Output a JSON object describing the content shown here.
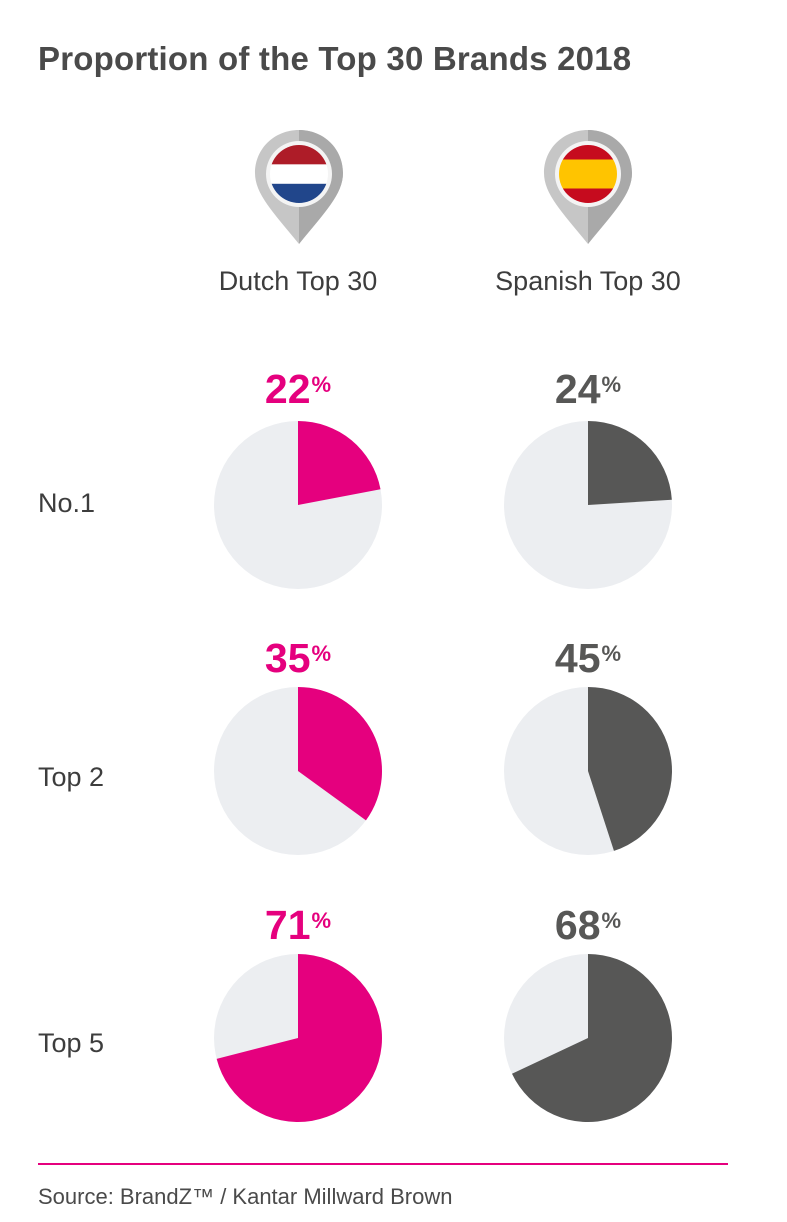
{
  "title": "Proportion of the Top 30 Brands 2018",
  "colors": {
    "dutch_accent": "#e5007e",
    "spanish_accent": "#575756",
    "pie_background": "#eceef1",
    "divider": "#e5007e"
  },
  "columns": [
    {
      "label": "Dutch Top 30",
      "flag_icon": "netherlands-flag-icon"
    },
    {
      "label": "Spanish Top 30",
      "flag_icon": "spain-flag-icon"
    }
  ],
  "rows": [
    "No.1",
    "Top 2",
    "Top 5"
  ],
  "percent_sign": "%",
  "chart_data": [
    {
      "type": "pie",
      "column": "Dutch Top 30",
      "row": "No.1",
      "value": 22,
      "label": "22"
    },
    {
      "type": "pie",
      "column": "Spanish Top 30",
      "row": "No.1",
      "value": 24,
      "label": "24"
    },
    {
      "type": "pie",
      "column": "Dutch Top 30",
      "row": "Top 2",
      "value": 35,
      "label": "35"
    },
    {
      "type": "pie",
      "column": "Spanish Top 30",
      "row": "Top 2",
      "value": 45,
      "label": "45"
    },
    {
      "type": "pie",
      "column": "Dutch Top 30",
      "row": "Top 5",
      "value": 71,
      "label": "71"
    },
    {
      "type": "pie",
      "column": "Spanish Top 30",
      "row": "Top 5",
      "value": 68,
      "label": "68"
    }
  ],
  "source": "Source: BrandZ™ / Kantar Millward Brown"
}
